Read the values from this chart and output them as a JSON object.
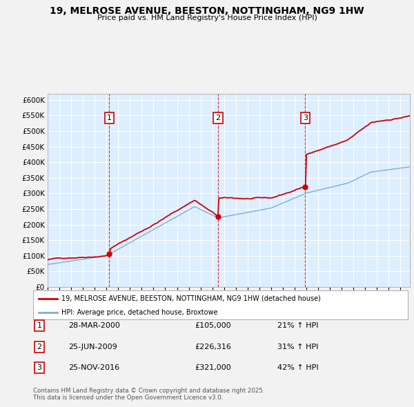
{
  "title": "19, MELROSE AVENUE, BEESTON, NOTTINGHAM, NG9 1HW",
  "subtitle": "Price paid vs. HM Land Registry's House Price Index (HPI)",
  "property_line_color": "#cc0000",
  "hpi_line_color": "#7bafd4",
  "background_color": "#f2f2f2",
  "plot_bg_color": "#ddeeff",
  "grid_color": "#ffffff",
  "ylim": [
    0,
    620000
  ],
  "yticks": [
    0,
    50000,
    100000,
    150000,
    200000,
    250000,
    300000,
    350000,
    400000,
    450000,
    500000,
    550000,
    600000
  ],
  "ytick_labels": [
    "£0",
    "£50K",
    "£100K",
    "£150K",
    "£200K",
    "£250K",
    "£300K",
    "£350K",
    "£400K",
    "£450K",
    "£500K",
    "£550K",
    "£600K"
  ],
  "sales": [
    {
      "label": "1",
      "date": "28-MAR-2000",
      "price": 105000,
      "year": 2000.24,
      "hpi_text": "21% ↑ HPI"
    },
    {
      "label": "2",
      "date": "25-JUN-2009",
      "price": 226316,
      "year": 2009.49,
      "hpi_text": "31% ↑ HPI"
    },
    {
      "label": "3",
      "date": "25-NOV-2016",
      "price": 321000,
      "year": 2016.9,
      "hpi_text": "42% ↑ HPI"
    }
  ],
  "legend_property": "19, MELROSE AVENUE, BEESTON, NOTTINGHAM, NG9 1HW (detached house)",
  "legend_hpi": "HPI: Average price, detached house, Broxtowe",
  "footnote": "Contains HM Land Registry data © Crown copyright and database right 2025.\nThis data is licensed under the Open Government Licence v3.0.",
  "xlim_start": 1995,
  "xlim_end": 2025.8
}
